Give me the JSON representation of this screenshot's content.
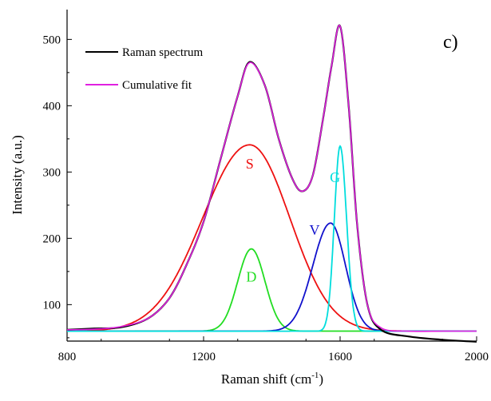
{
  "chart_data": {
    "type": "line",
    "panel_label": "c)",
    "xlabel": "Raman shift (cm",
    "xlabel_sup": "-1",
    "xlabel_end": ")",
    "ylabel": "Intensity (a.u.)",
    "xlim": [
      800,
      2000
    ],
    "ylim": [
      45,
      545
    ],
    "xticks": [
      800,
      1200,
      1600,
      2000
    ],
    "yticks": [
      100,
      200,
      300,
      400,
      500
    ],
    "grid": false,
    "legend": {
      "placement": "top-left",
      "entries": [
        {
          "name": "Raman spectrum",
          "color": "#000000"
        },
        {
          "name": "Cumulative fit",
          "color": "#e020e0"
        }
      ]
    },
    "baseline": 60,
    "components": [
      {
        "label": "S",
        "color": "#ee1111",
        "center": 1335,
        "height": 281,
        "sigma_left": 138,
        "sigma_right": 118
      },
      {
        "label": "D",
        "color": "#22dd22",
        "center": 1340,
        "height": 124,
        "sigma_left": 40,
        "sigma_right": 40
      },
      {
        "label": "V",
        "color": "#1111cc",
        "center": 1572,
        "height": 163,
        "sigma_left": 52,
        "sigma_right": 44
      },
      {
        "label": "G",
        "color": "#00dddd",
        "center": 1600,
        "height": 279,
        "sigma_left": 17,
        "sigma_right": 19
      }
    ],
    "series": [
      {
        "name": "Raman spectrum",
        "color": "#000000",
        "x": [
          800,
          880,
          960,
          1040,
          1100,
          1150,
          1200,
          1250,
          1300,
          1335,
          1380,
          1420,
          1460,
          1490,
          1520,
          1550,
          1575,
          1600,
          1625,
          1650,
          1680,
          1720,
          1800,
          1900,
          2000
        ],
        "y": [
          62,
          64,
          66,
          80,
          110,
          160,
          225,
          320,
          415,
          466,
          430,
          350,
          290,
          271,
          295,
          380,
          460,
          520,
          400,
          220,
          100,
          62,
          52,
          47,
          44
        ]
      },
      {
        "name": "Cumulative fit",
        "color": "#e020e0",
        "x": [
          800,
          880,
          960,
          1040,
          1100,
          1150,
          1200,
          1250,
          1300,
          1335,
          1380,
          1420,
          1460,
          1490,
          1520,
          1550,
          1575,
          1600,
          1625,
          1650,
          1680,
          1720,
          1800,
          1900,
          2000
        ],
        "y": [
          62,
          63,
          67,
          80,
          110,
          160,
          225,
          320,
          415,
          465,
          430,
          350,
          290,
          271,
          295,
          380,
          460,
          520,
          400,
          220,
          100,
          65,
          60,
          60,
          60
        ]
      }
    ]
  }
}
